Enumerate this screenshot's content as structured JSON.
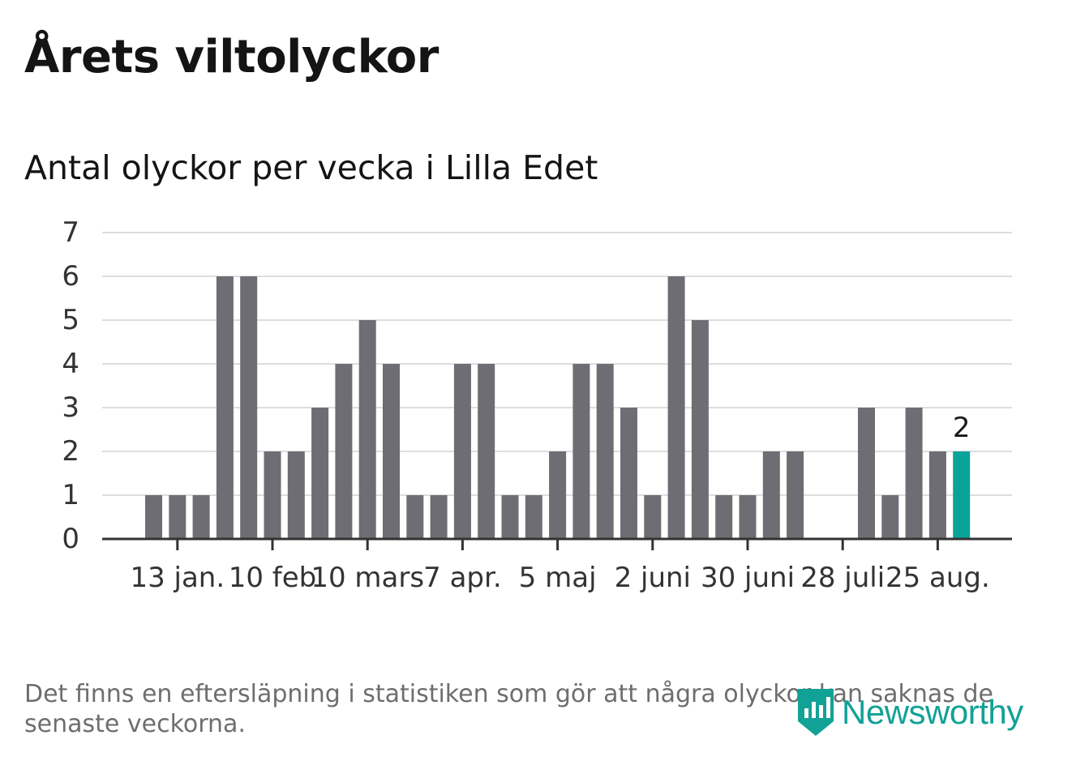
{
  "title": "Årets viltolyckor",
  "subtitle": "Antal olyckor per vecka i Lilla Edet",
  "note": "Det finns en eftersläpning i statistiken som gör att några olyckor kan saknas de senaste veckorna.",
  "logo": {
    "text": "Newsworthy",
    "icon": "newsworthy-logo-icon"
  },
  "colors": {
    "bar": "#6e6d73",
    "highlight": "#0aa39a",
    "grid": "#dddddd",
    "axis": "#333333",
    "text": "#333333"
  },
  "chart_data": {
    "type": "bar",
    "title": "Antal olyckor per vecka i Lilla Edet",
    "xlabel": "",
    "ylabel": "",
    "ylim": [
      0,
      7
    ],
    "y_ticks": [
      0,
      1,
      2,
      3,
      4,
      5,
      6,
      7
    ],
    "grid": true,
    "x_ticks": [
      {
        "label": "13 jan.",
        "index": 1
      },
      {
        "label": "10 feb",
        "index": 5
      },
      {
        "label": "10 mars",
        "index": 9
      },
      {
        "label": "7 apr.",
        "index": 13
      },
      {
        "label": "5 maj",
        "index": 17
      },
      {
        "label": "2 juni",
        "index": 21
      },
      {
        "label": "30 juni",
        "index": 25
      },
      {
        "label": "28 juli",
        "index": 29
      },
      {
        "label": "25 aug.",
        "index": 33
      }
    ],
    "values": [
      1,
      1,
      1,
      6,
      6,
      2,
      2,
      3,
      4,
      5,
      4,
      1,
      1,
      4,
      4,
      1,
      1,
      2,
      4,
      4,
      3,
      1,
      6,
      5,
      1,
      1,
      2,
      2,
      0,
      0,
      3,
      1,
      3,
      2,
      2
    ],
    "highlight_index": 34,
    "highlight_label": "2"
  }
}
